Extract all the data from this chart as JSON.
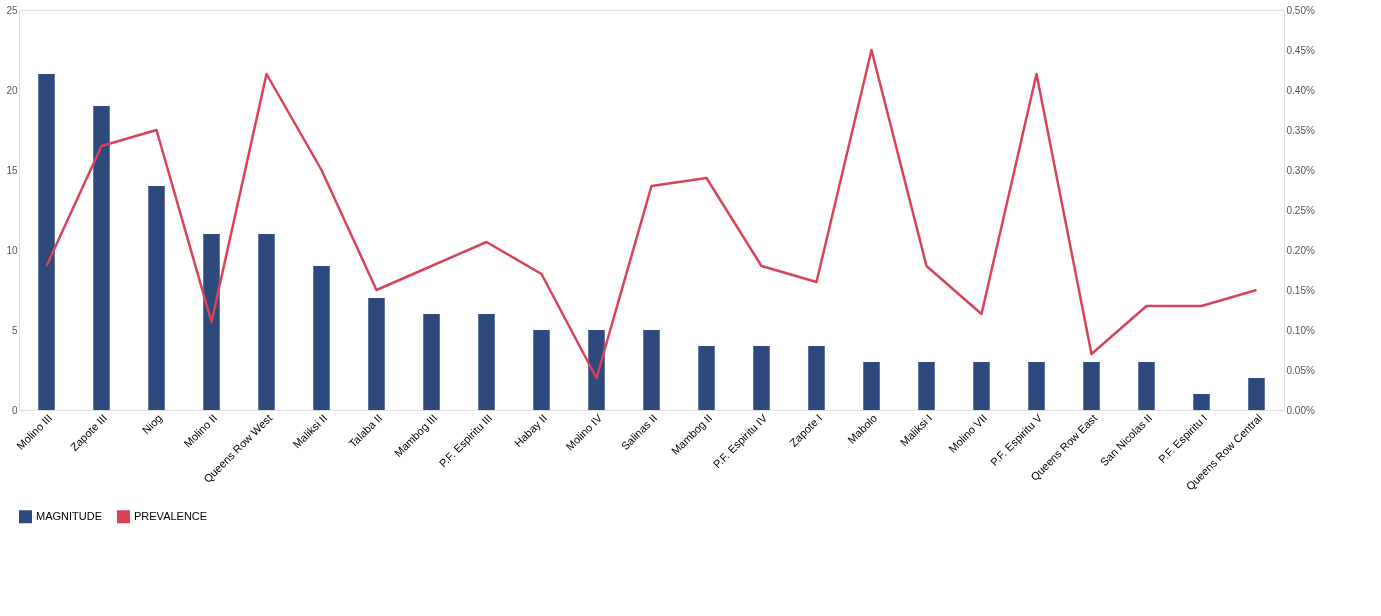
{
  "chart_data": {
    "type": "bar",
    "categories": [
      "Molino III",
      "Zapote III",
      "Niog",
      "Molino II",
      "Queens Row West",
      "Maliksi II",
      "Talaba II",
      "Mambog III",
      "P.F. Espiritu III",
      "Habay II",
      "Molino IV",
      "Salinas II",
      "Mambog II",
      "P.F. Espiritu IV",
      "Zapote I",
      "Mabolo",
      "Maliksi I",
      "Molino VII",
      "P.F. Espiritu V",
      "Queens Row East",
      "San Nicolas II",
      "P.F. Espiritu I",
      "Queens Row Central"
    ],
    "series": [
      {
        "name": "MAGNITUDE",
        "color": "#2e4a7d",
        "values": [
          21,
          19,
          14,
          11,
          11,
          9,
          7,
          6,
          6,
          5,
          5,
          5,
          4,
          4,
          4,
          3,
          3,
          3,
          3,
          3,
          3,
          1,
          2
        ]
      },
      {
        "name": "PREVALENCE",
        "type": "line",
        "axis": "y2",
        "color": "#d9435a",
        "values": [
          0.18,
          0.33,
          0.35,
          0.11,
          0.42,
          0.3,
          0.15,
          0.18,
          0.21,
          0.17,
          0.04,
          0.28,
          0.29,
          0.18,
          0.16,
          0.45,
          0.18,
          0.12,
          0.42,
          0.07,
          0.13,
          0.13,
          0.15
        ]
      }
    ],
    "ylim": [
      0,
      25
    ],
    "yticks": [
      0,
      5,
      10,
      15,
      20,
      25
    ],
    "y2lim": [
      0,
      0.5
    ],
    "y2ticks": [
      {
        "value": 0,
        "label": "0.00%"
      },
      {
        "value": 0.05,
        "label": "0.05%"
      },
      {
        "value": 0.1,
        "label": "0.10%"
      },
      {
        "value": 0.15,
        "label": "0.15%"
      },
      {
        "value": 0.2,
        "label": "0.20%"
      },
      {
        "value": 0.25,
        "label": "0.25%"
      },
      {
        "value": 0.3,
        "label": "0.30%"
      },
      {
        "value": 0.35,
        "label": "0.35%"
      },
      {
        "value": 0.4,
        "label": "0.40%"
      },
      {
        "value": 0.45,
        "label": "0.45%"
      },
      {
        "value": 0.5,
        "label": "0.50%"
      }
    ],
    "grid": false,
    "legend": "bottom",
    "marker": "none",
    "line_style": "solid"
  }
}
